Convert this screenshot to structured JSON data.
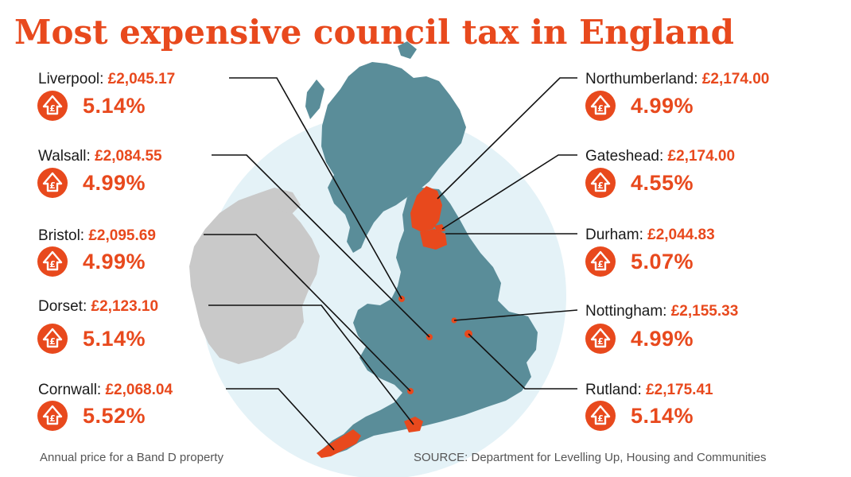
{
  "title": "Most expensive council tax in England",
  "entries": [
    {
      "name": "Liverpool:",
      "price": "£2,045.17",
      "change": "5.14%"
    },
    {
      "name": "Walsall:",
      "price": "£2,084.55",
      "change": "4.99%"
    },
    {
      "name": "Bristol:",
      "price": "£2,095.69",
      "change": "4.99%"
    },
    {
      "name": "Dorset:",
      "price": "£2,123.10",
      "change": "5.14%"
    },
    {
      "name": "Cornwall:",
      "price": "£2,068.04",
      "change": "5.52%"
    },
    {
      "name": "Northumberland:",
      "price": "£2,174.00",
      "change": "4.99%"
    },
    {
      "name": "Gateshead:",
      "price": "£2,174.00",
      "change": "4.55%"
    },
    {
      "name": "Durham:",
      "price": "£2,044.83",
      "change": "5.07%"
    },
    {
      "name": "Nottingham:",
      "price": "£2,155.33",
      "change": "4.99%"
    },
    {
      "name": "Rutland:",
      "price": "£2,175.41",
      "change": "5.14%"
    }
  ],
  "badge_icon": "pound-up-arrow-icon",
  "badge_glyph": "£",
  "footnote_left": "Annual price for a Band D property",
  "footnote_right": "SOURCE: Department for Levelling Up, Housing and Communities",
  "colors": {
    "accent": "#e8491d",
    "land": "#5a8d99",
    "ireland": "#c9c9c9",
    "circle": "#e4f2f7",
    "text": "#1a1a1a"
  }
}
